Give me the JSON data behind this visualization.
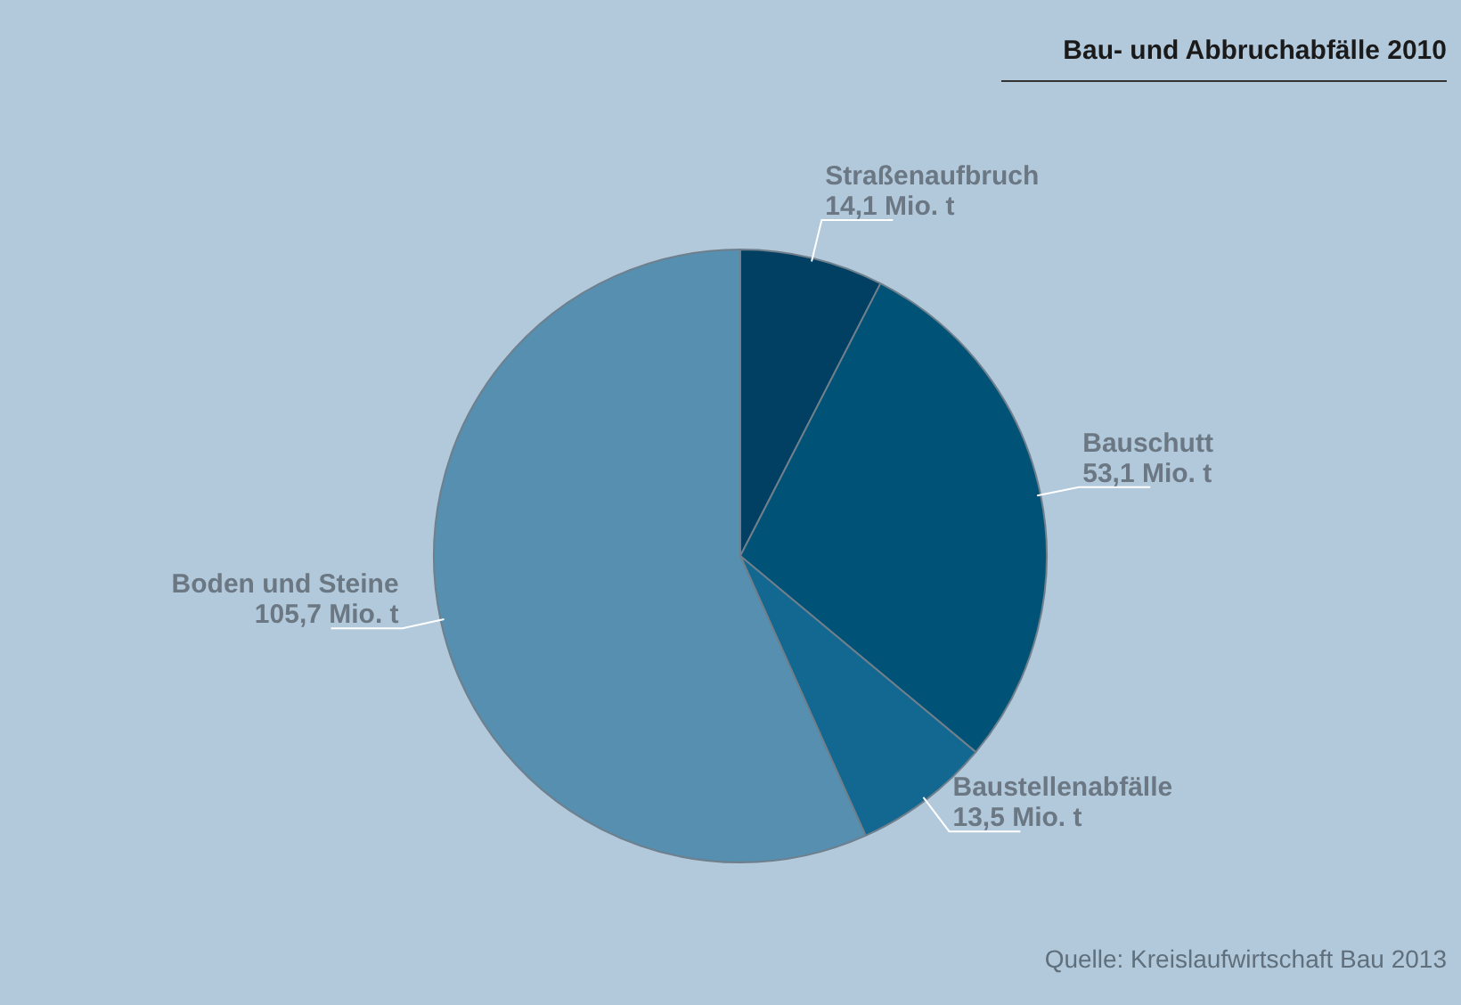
{
  "chart_data": {
    "type": "pie",
    "title": "Bau- und Abbruchabfälle 2010",
    "categories": [
      "Straßenaufbruch",
      "Bauschutt",
      "Baustellenabfälle",
      "Boden und Steine"
    ],
    "values": [
      14.1,
      53.1,
      13.5,
      105.7
    ],
    "colors": [
      "#013f63",
      "#005277",
      "#136891",
      "#568fb0"
    ],
    "value_labels": [
      "14,1 Mio. t",
      "53,1 Mio. t",
      "13,5 Mio. t",
      "105,7 Mio. t"
    ],
    "legend": false,
    "annotations": [
      "Quelle: Kreislaufwirtschaft Bau 2013"
    ]
  }
}
